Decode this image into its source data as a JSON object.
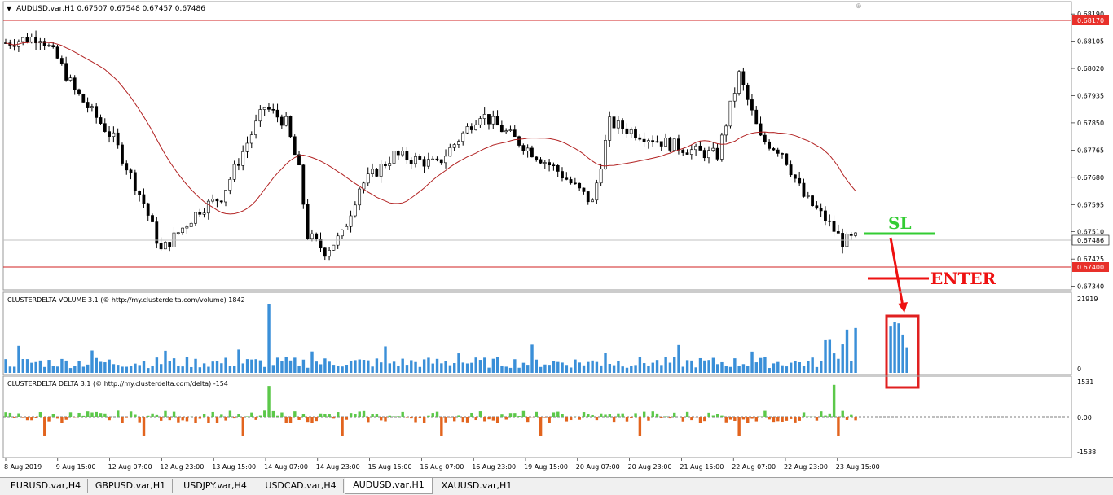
{
  "window": {
    "symbol_header": "AUDUSD.var,H1  0.67507 0.67548 0.67457 0.67486"
  },
  "price_axis": {
    "ticks": [
      "0.68190",
      "0.68105",
      "0.68020",
      "0.67935",
      "0.67850",
      "0.67765",
      "0.67680",
      "0.67595",
      "0.67510",
      "0.67425",
      "0.67340"
    ],
    "level_labels": [
      "0.68170",
      "0.67400"
    ],
    "current_price_label": "0.67486"
  },
  "volume_indicator": {
    "title": "CLUSTERDELTA VOLUME 3.1 (© http://my.clusterdelta.com/volume) 1842",
    "max_label": "21919",
    "min_label": "0"
  },
  "delta_indicator": {
    "title": "CLUSTERDELTA DELTA 3.1 (© http://my.clusterdelta.com/delta) -154",
    "top_label": "1531",
    "zero_label": "0.00",
    "bottom_label": "-1538"
  },
  "time_axis": {
    "labels": [
      "8 Aug 2019",
      "9 Aug 15:00",
      "12 Aug 07:00",
      "12 Aug 23:00",
      "13 Aug 15:00",
      "14 Aug 07:00",
      "14 Aug 23:00",
      "15 Aug 15:00",
      "16 Aug 07:00",
      "16 Aug 23:00",
      "19 Aug 15:00",
      "20 Aug 07:00",
      "20 Aug 23:00",
      "21 Aug 15:00",
      "22 Aug 07:00",
      "22 Aug 23:00",
      "23 Aug 15:00"
    ]
  },
  "annotations": {
    "sl_label": "SL",
    "enter_label": "ENTER",
    "sl_color": "#33cc33",
    "enter_color": "#ee1111"
  },
  "tabs": [
    {
      "label": "EURUSD.var,H4",
      "active": false
    },
    {
      "label": "GBPUSD.var,H1",
      "active": false
    },
    {
      "label": "USDJPY.var,H4",
      "active": false
    },
    {
      "label": "USDCAD.var,H4",
      "active": false
    },
    {
      "label": "AUDUSD.var,H1",
      "active": true
    },
    {
      "label": "XAUUSD.var,H1",
      "active": false
    }
  ],
  "chart_data": [
    {
      "type": "candlestick",
      "symbol": "AUDUSD.var",
      "timeframe": "H1",
      "ohlc_last": {
        "open": 0.67507,
        "high": 0.67548,
        "low": 0.67457,
        "close": 0.67486
      },
      "ylim": [
        0.6732,
        0.682
      ],
      "horizontal_levels": [
        0.6817,
        0.674
      ],
      "moving_average": {
        "color": "#b22222"
      },
      "y_ticks": [
        0.6819,
        0.68105,
        0.6802,
        0.67935,
        0.6785,
        0.67765,
        0.6768,
        0.67595,
        0.6751,
        0.67425,
        0.6734
      ],
      "grid": false
    },
    {
      "type": "bar",
      "name": "CLUSTERDELTA VOLUME 3.1",
      "ylim": [
        0,
        21919
      ],
      "color": "#3a8fd8",
      "last_value": 1842
    },
    {
      "type": "bar",
      "name": "CLUSTERDELTA DELTA 3.1",
      "ylim": [
        -1538,
        1531
      ],
      "positive_color": "#5cc84a",
      "negative_color": "#e2641e",
      "last_value": -154
    }
  ]
}
